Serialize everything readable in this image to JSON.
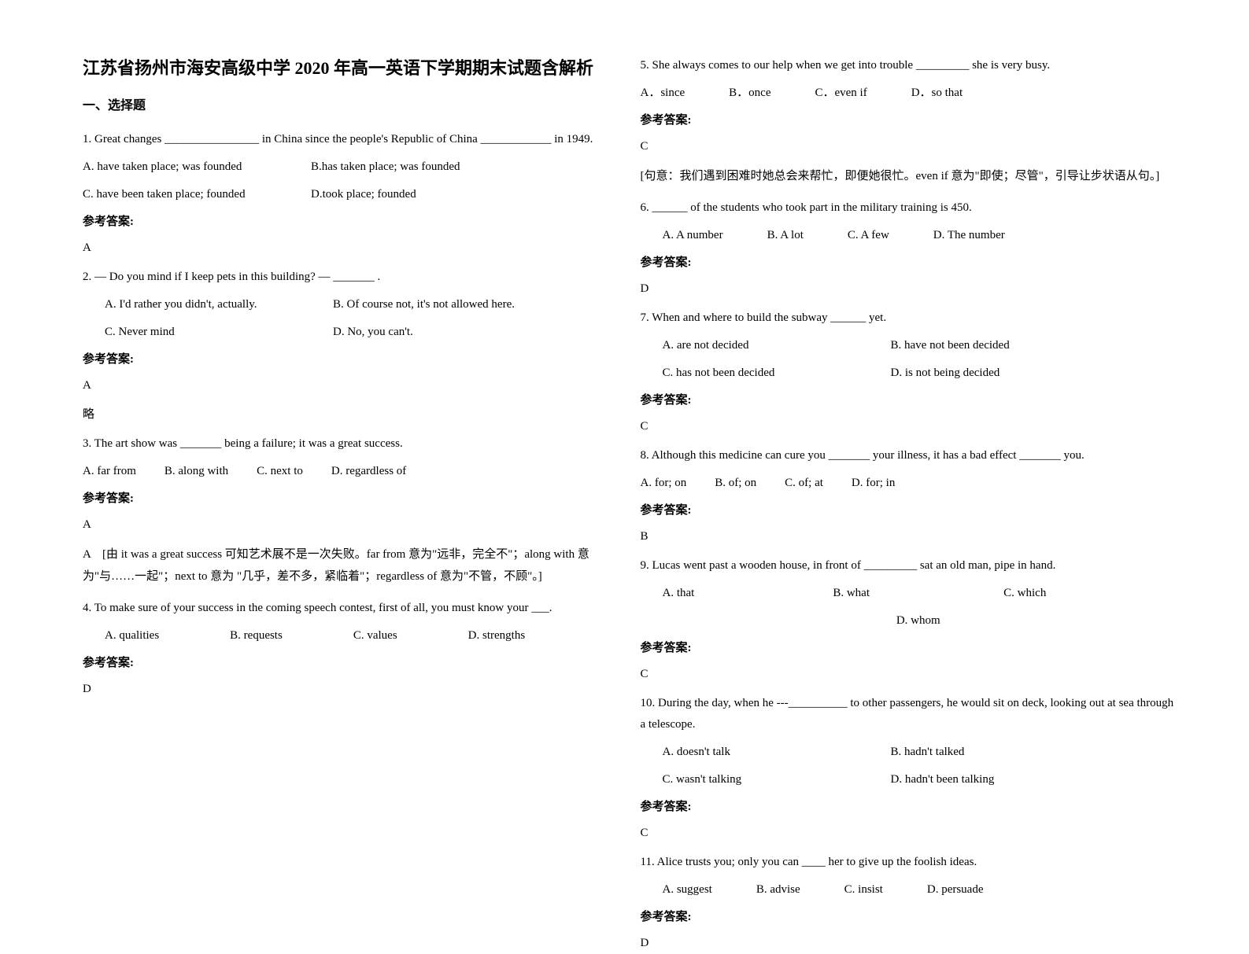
{
  "title": "江苏省扬州市海安高级中学 2020 年高一英语下学期期末试题含解析",
  "section1": "一、选择题",
  "ansLabel": "参考答案:",
  "略": "略",
  "q1": {
    "stem": "1. Great changes ________________ in China since the people's Republic of China ____________ in 1949.",
    "a": "A. have taken place; was founded",
    "b": "B.has taken place; was founded",
    "c": "C. have been taken place; founded",
    "d": "D.took place; founded",
    "ans": "A"
  },
  "q2": {
    "stem": "2. — Do you mind if I keep pets in this building?  — _______ .",
    "a": "A. I'd rather you didn't, actually.",
    "b": "B. Of course not, it's not allowed here.",
    "c": "C. Never mind",
    "d": "D. No, you can't.",
    "ans": "A"
  },
  "q3": {
    "stem": "3. The art show was _______ being a failure; it was a great success.",
    "a": "A. far from",
    "b": "B. along with",
    "c": "C. next to",
    "d": "D. regardless of",
    "ans": "A",
    "note": "A　[由 it was a great success 可知艺术展不是一次失败。far from 意为\"远非，完全不\"；along with 意为\"与……一起\"；next to 意为 \"几乎，差不多，紧临着\"；regardless of 意为\"不管，不顾\"。]"
  },
  "q4": {
    "stem": "4. To make sure of your success in the coming speech contest, first of all, you must know your ___.",
    "a": "A. qualities",
    "b": "B. requests",
    "c": "C. values",
    "d": "D. strengths",
    "ans": "D"
  },
  "q5": {
    "stem": "5. She always comes to our help when we get into trouble _________ she is very busy.",
    "a": "A．since",
    "b": "B．once",
    "c": "C．even if",
    "d": "D．so that",
    "ans": "C",
    "note": "[句意：我们遇到困难时她总会来帮忙，即便她很忙。even if 意为\"即使；尽管\"，引导让步状语从句。]"
  },
  "q6": {
    "stem": "6. ______ of the students who took part in the military training is 450.",
    "a": "A. A number",
    "b": "B. A lot",
    "c": "C. A few",
    "d": "D. The number",
    "ans": "D"
  },
  "q7": {
    "stem": "7.  When and where to build the subway ______ yet.",
    "a": "A. are not decided",
    "b": "B. have not been decided",
    "c": "C. has not been decided",
    "d": "D. is not being decided",
    "ans": "C"
  },
  "q8": {
    "stem": "8. Although this medicine can cure you _______ your illness, it has a bad effect _______ you.",
    "a": "A. for; on",
    "b": "B. of; on",
    "c": "C. of; at",
    "d": "D. for; in",
    "ans": "B"
  },
  "q9": {
    "stem": "9. Lucas went past a wooden house, in front of _________ sat an old man, pipe in hand.",
    "a": "A. that",
    "b": "B. what",
    "c": "C. which",
    "d": "D. whom",
    "ans": "C"
  },
  "q10": {
    "stem": "10. During the day, when he ---__________ to other passengers, he would sit on deck, looking out at sea through a telescope.",
    "a": "A. doesn't talk",
    "b": "B. hadn't talked",
    "c": "C. wasn't talking",
    "d": "D. hadn't been talking",
    "ans": "C"
  },
  "q11": {
    "stem": "11. Alice trusts you; only you can ____ her to give up the foolish ideas.",
    "a": "A. suggest",
    "b": "B. advise",
    "c": "C. insist",
    "d": "D. persuade",
    "ans": "D"
  }
}
